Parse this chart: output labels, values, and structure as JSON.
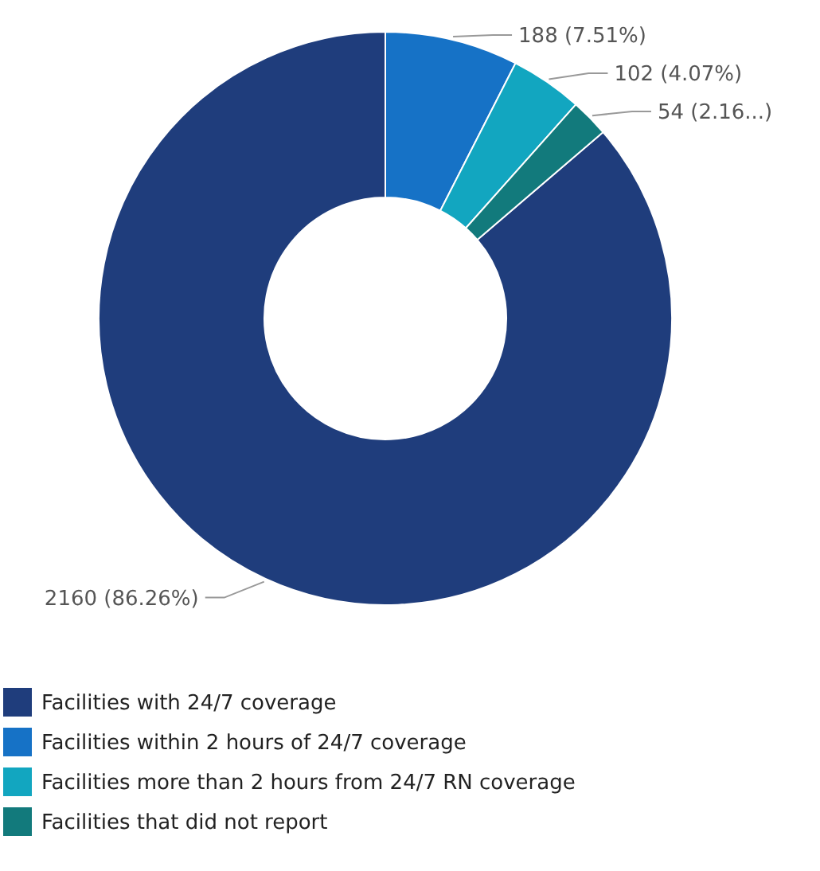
{
  "chart_data": {
    "type": "donut",
    "categories": [
      "Facilities with 24/7 coverage",
      "Facilities within 2 hours of 24/7 coverage",
      "Facilities more than 2 hours from 24/7 RN coverage",
      "Facilities that did not report"
    ],
    "values": [
      2160,
      188,
      102,
      54
    ],
    "colors": [
      "#1f3d7c",
      "#1672c6",
      "#12a6c0",
      "#127a7c"
    ],
    "value_labels": [
      "2160 (86.26%)",
      "188 (7.51%)",
      "102 (4.07%)",
      "54 (2.16...)"
    ],
    "legend": "bottom"
  }
}
